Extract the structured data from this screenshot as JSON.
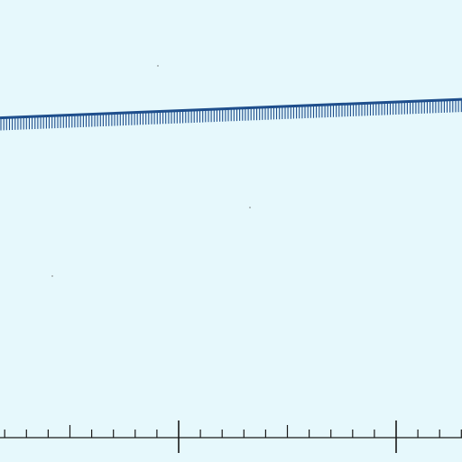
{
  "map": {
    "background_color": "#e6f8fc",
    "line_color": "#1e4e8c",
    "axis_color": "#1a1a1a",
    "dot_color": "#666666"
  },
  "hatched_line": {
    "kind": "hatched boundary line with comb ticks on its lower side",
    "start_level": 0.255,
    "end_level": 0.215
  },
  "ruler": {
    "kind": "scale ruler with minor and major ticks",
    "major_ticks": 3,
    "minor_ticks_between_majors": 9
  }
}
